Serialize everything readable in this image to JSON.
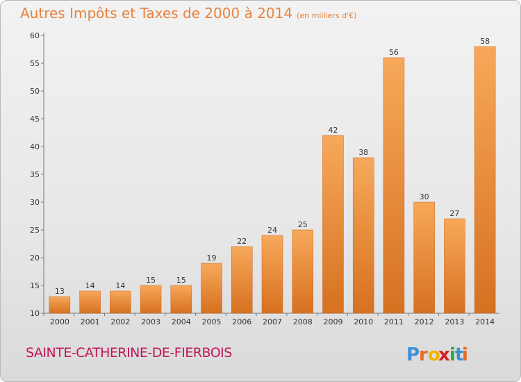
{
  "title": {
    "main": "Autres Impôts et Taxes de 2000 à 2014",
    "unit": "(en milliers d'€)"
  },
  "commune": "SAINTE-CATHERINE-DE-FIERBOIS",
  "logo": {
    "letters": [
      "P",
      "r",
      "o",
      "x",
      "i",
      "t",
      "i"
    ],
    "colors": [
      "#3f8fd4",
      "#e86a1a",
      "#f0b400",
      "#d62020",
      "#2aa845",
      "#3f8fd4",
      "#e86a1a"
    ]
  },
  "colors": {
    "bar_light": "#f7a85a",
    "bar_dark": "#d67120",
    "title": "#e8823c",
    "commune": "#c0185a"
  },
  "chart_data": {
    "type": "bar",
    "categories": [
      "2000",
      "2001",
      "2002",
      "2003",
      "2004",
      "2005",
      "2006",
      "2007",
      "2008",
      "2009",
      "2010",
      "2011",
      "2012",
      "2013",
      "2014"
    ],
    "values": [
      13,
      14,
      14,
      15,
      15,
      19,
      22,
      24,
      25,
      42,
      38,
      56,
      30,
      27,
      58
    ],
    "ylim": [
      10,
      60
    ],
    "yticks": [
      10,
      15,
      20,
      25,
      30,
      35,
      40,
      45,
      50,
      55,
      60
    ],
    "grid": false
  }
}
